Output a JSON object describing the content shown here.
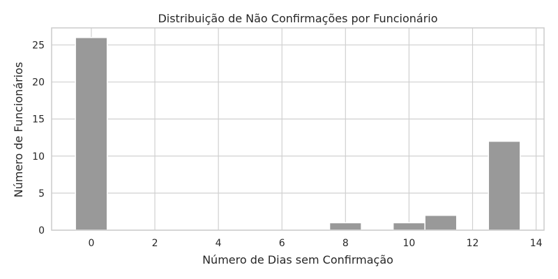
{
  "chart_data": {
    "type": "bar",
    "title": "Distribuição de Não Confirmações por Funcionário",
    "xlabel": "Número de Dias sem Confirmação",
    "ylabel": "Número de Funcionários",
    "xlim": [
      -1.25,
      14.25
    ],
    "ylim": [
      0,
      27.3
    ],
    "xticks": [
      0,
      2,
      4,
      6,
      8,
      10,
      12,
      14
    ],
    "yticks": [
      0,
      5,
      10,
      15,
      20,
      25
    ],
    "bin_width": 1,
    "bars": [
      {
        "x": 0,
        "value": 26
      },
      {
        "x": 8,
        "value": 1
      },
      {
        "x": 10,
        "value": 1
      },
      {
        "x": 11,
        "value": 2
      },
      {
        "x": 13,
        "value": 12
      }
    ],
    "grid": true,
    "bar_color": "#999999",
    "grid_color": "#d0d0d0",
    "spine_color": "#cccccc"
  }
}
